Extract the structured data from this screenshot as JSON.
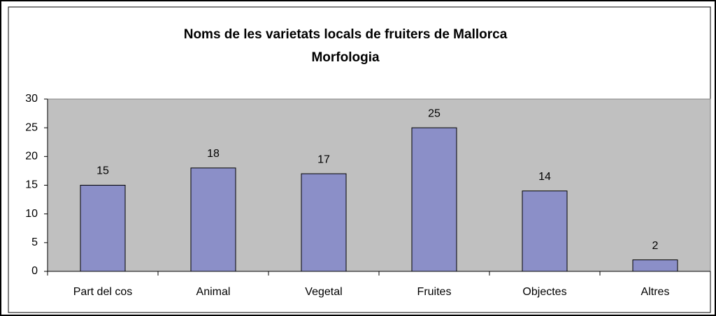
{
  "chart_data": {
    "type": "bar",
    "title": "Noms de les varietats locals de fruiters de Mallorca",
    "subtitle": "Morfologia",
    "categories": [
      "Part del cos",
      "Animal",
      "Vegetal",
      "Fruites",
      "Objectes",
      "Altres"
    ],
    "values": [
      15,
      18,
      17,
      25,
      14,
      2
    ],
    "color": "#8b8fc8",
    "ylim": [
      0,
      30
    ],
    "yticks": [
      0,
      5,
      10,
      15,
      20,
      25,
      30
    ],
    "grid": false
  }
}
